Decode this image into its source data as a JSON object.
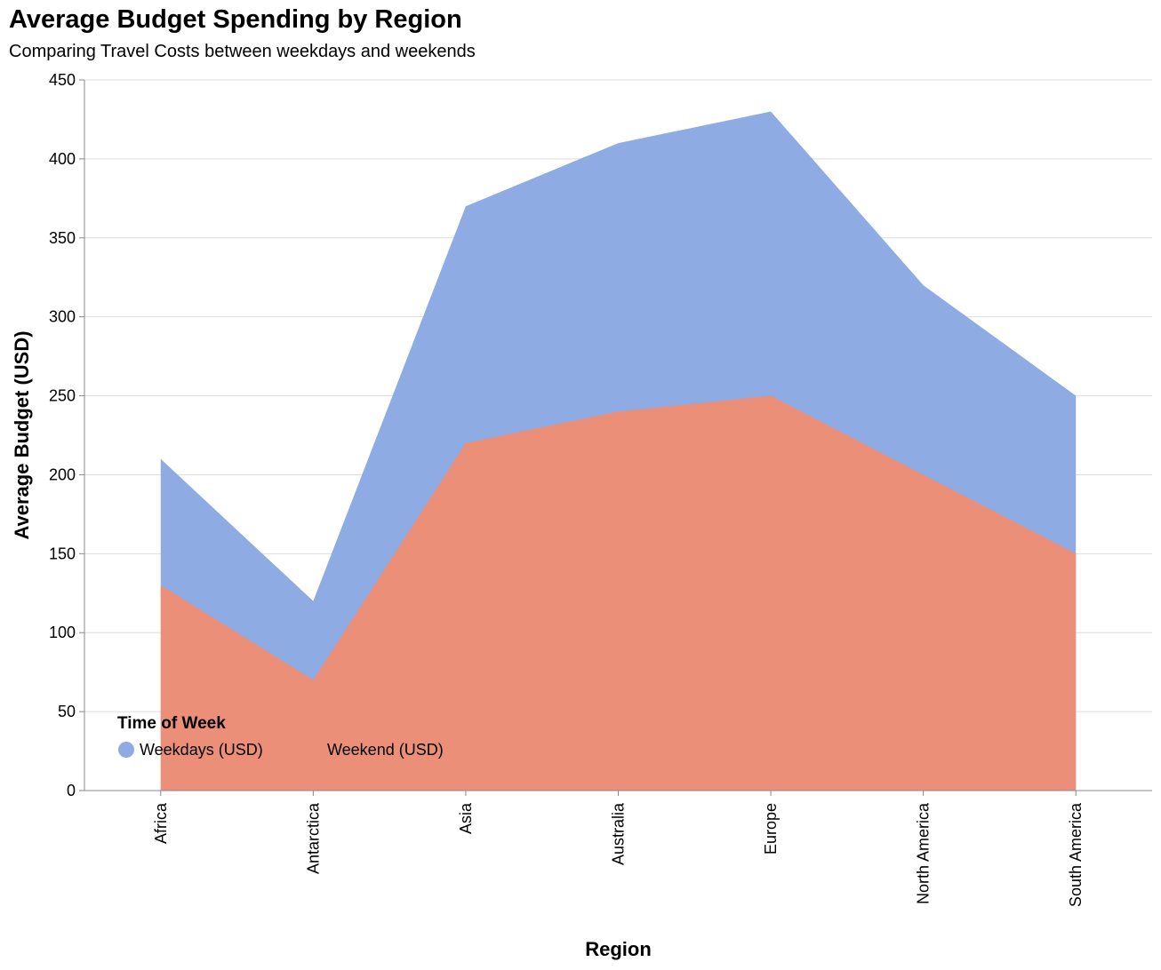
{
  "chart_data": {
    "type": "area",
    "title": "Average Budget Spending by Region",
    "subtitle": "Comparing Travel Costs between weekdays and weekends",
    "xlabel": "Region",
    "ylabel": "Average Budget (USD)",
    "categories": [
      "Africa",
      "Antarctica",
      "Asia",
      "Australia",
      "Europe",
      "North America",
      "South America"
    ],
    "ylim": [
      0,
      450
    ],
    "yticks": [
      0,
      50,
      100,
      150,
      200,
      250,
      300,
      350,
      400,
      450
    ],
    "grid": true,
    "stacked": false,
    "legend": {
      "title": "Time of Week",
      "placement": "bottom-left"
    },
    "series": [
      {
        "name": "Weekdays (USD)",
        "color": "#8fabe3",
        "values": [
          210,
          120,
          370,
          410,
          430,
          320,
          250
        ]
      },
      {
        "name": "Weekend (USD)",
        "color": "#ec8f79",
        "values": [
          130,
          70,
          220,
          240,
          250,
          200,
          150
        ]
      }
    ]
  }
}
